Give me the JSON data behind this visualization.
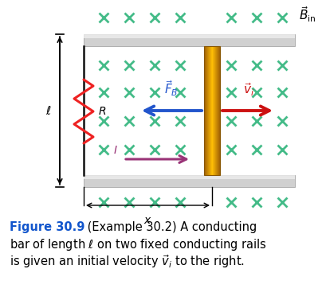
{
  "fig_width": 4.09,
  "fig_height": 3.87,
  "dpi": 100,
  "bg_color": "#ffffff",
  "cross_color": "#44bb88",
  "resistor_color": "#ee2222",
  "arrow_FB_color": "#2255cc",
  "arrow_vi_color": "#cc1111",
  "arrow_I_color": "#993377",
  "caption_bold_color": "#1155cc",
  "rail_facecolor": "#d0d0d0",
  "rail_highlight": "#eeeeee",
  "bar_left_color": "#a06010",
  "bar_mid_color": "#f0c050",
  "bar_right_color": "#a06010",
  "left_line_color": "#111111",
  "dim_arrow_color": "#111111",
  "x_dim_arrow_color": "#111111"
}
